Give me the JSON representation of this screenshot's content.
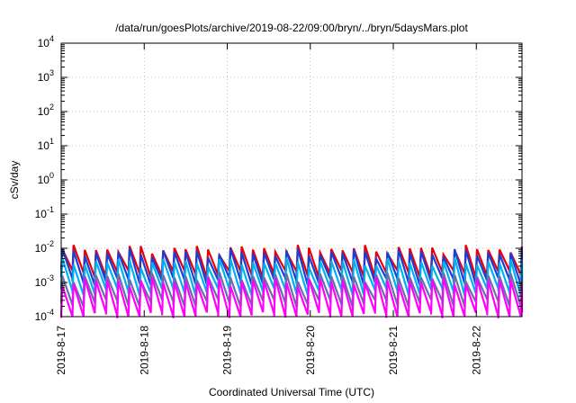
{
  "chart_data": {
    "type": "line",
    "title": "/data/run/goesPlots/archive/2019-08-22/09:00/bryn/../bryn/5daysMars.plot",
    "xlabel": "Coordinated Universal Time (UTC)",
    "ylabel": "cSv/day",
    "x_tick_labels": [
      "2019-8-17",
      "2019-8-18",
      "2019-8-19",
      "2019-8-20",
      "2019-8-21",
      "2019-8-22"
    ],
    "x_tick_positions_days": [
      0,
      1,
      2,
      3,
      4,
      5
    ],
    "xlim_days": [
      0,
      5.55
    ],
    "y_scale": "log",
    "ylim": [
      0.0001,
      10000
    ],
    "y_tick_exponents": [
      -4,
      -3,
      -2,
      -1,
      0,
      1,
      2,
      3,
      4
    ],
    "y_tick_base": "10",
    "grid": true,
    "legend": false,
    "period_days": 0.135,
    "series": [
      {
        "color": "#e8000b",
        "peak": 0.0095,
        "min": 0.002
      },
      {
        "color": "#1a3fd6",
        "peak": 0.0075,
        "min": 0.0012
      },
      {
        "color": "#00b0f0",
        "peak": 0.004,
        "min": 0.0006
      },
      {
        "color": "#6b6fa8",
        "peak": 0.0015,
        "min": 0.00028
      },
      {
        "color": "#ff00ff",
        "peak": 0.0011,
        "min": 0.00012
      }
    ]
  }
}
